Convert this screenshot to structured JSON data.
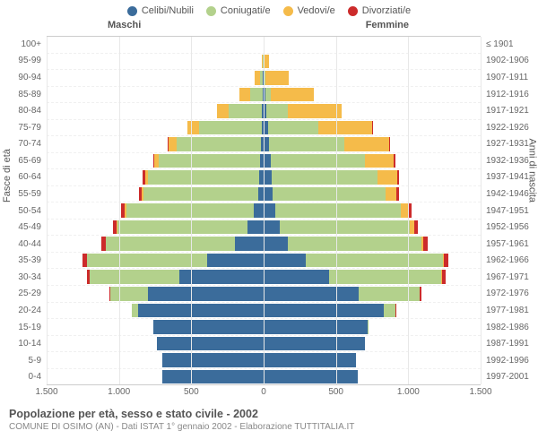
{
  "legend": [
    {
      "label": "Celibi/Nubili",
      "color": "#3b6c9b"
    },
    {
      "label": "Coniugati/e",
      "color": "#b3d18c"
    },
    {
      "label": "Vedovi/e",
      "color": "#f5bb4a"
    },
    {
      "label": "Divorziati/e",
      "color": "#cc2b2b"
    }
  ],
  "headers": {
    "male": "Maschi",
    "female": "Femmine"
  },
  "axis_labels": {
    "left": "Fasce di età",
    "right": "Anni di nascita"
  },
  "x_axis": {
    "max": 1500,
    "ticks": [
      1500,
      1000,
      500,
      0,
      500,
      1000,
      1500
    ]
  },
  "colors": {
    "single": "#3b6c9b",
    "married": "#b3d18c",
    "widowed": "#f5bb4a",
    "divorced": "#cc2b2b",
    "grid": "#e8e8e8",
    "center": "#aaaaaa",
    "bg": "#ffffff"
  },
  "bar_fontsize": 10,
  "rows": [
    {
      "age": "100+",
      "birth": "≤ 1901",
      "m": [
        0,
        0,
        3,
        0
      ],
      "f": [
        0,
        0,
        5,
        0
      ]
    },
    {
      "age": "95-99",
      "birth": "1902-1906",
      "m": [
        2,
        2,
        10,
        0
      ],
      "f": [
        2,
        3,
        35,
        0
      ]
    },
    {
      "age": "90-94",
      "birth": "1907-1911",
      "m": [
        5,
        20,
        40,
        0
      ],
      "f": [
        5,
        10,
        160,
        0
      ]
    },
    {
      "age": "85-89",
      "birth": "1912-1916",
      "m": [
        5,
        90,
        70,
        0
      ],
      "f": [
        10,
        40,
        300,
        0
      ]
    },
    {
      "age": "80-84",
      "birth": "1917-1921",
      "m": [
        10,
        230,
        80,
        0
      ],
      "f": [
        20,
        150,
        370,
        0
      ]
    },
    {
      "age": "75-79",
      "birth": "1922-1926",
      "m": [
        15,
        430,
        80,
        5
      ],
      "f": [
        30,
        350,
        370,
        5
      ]
    },
    {
      "age": "70-74",
      "birth": "1927-1931",
      "m": [
        20,
        580,
        60,
        5
      ],
      "f": [
        40,
        520,
        310,
        5
      ]
    },
    {
      "age": "65-69",
      "birth": "1932-1936",
      "m": [
        25,
        700,
        30,
        10
      ],
      "f": [
        50,
        650,
        200,
        10
      ]
    },
    {
      "age": "60-64",
      "birth": "1937-1941",
      "m": [
        30,
        770,
        20,
        15
      ],
      "f": [
        55,
        730,
        140,
        12
      ]
    },
    {
      "age": "55-59",
      "birth": "1942-1946",
      "m": [
        40,
        790,
        15,
        18
      ],
      "f": [
        60,
        780,
        80,
        15
      ]
    },
    {
      "age": "50-54",
      "birth": "1947-1951",
      "m": [
        70,
        880,
        10,
        25
      ],
      "f": [
        80,
        870,
        50,
        20
      ]
    },
    {
      "age": "45-49",
      "birth": "1952-1956",
      "m": [
        110,
        900,
        5,
        25
      ],
      "f": [
        110,
        900,
        30,
        25
      ]
    },
    {
      "age": "40-44",
      "birth": "1957-1961",
      "m": [
        200,
        890,
        3,
        28
      ],
      "f": [
        170,
        920,
        15,
        28
      ]
    },
    {
      "age": "35-39",
      "birth": "1962-1966",
      "m": [
        390,
        830,
        2,
        28
      ],
      "f": [
        290,
        950,
        8,
        30
      ]
    },
    {
      "age": "30-34",
      "birth": "1967-1971",
      "m": [
        580,
        620,
        0,
        20
      ],
      "f": [
        450,
        780,
        5,
        22
      ]
    },
    {
      "age": "25-29",
      "birth": "1972-1976",
      "m": [
        800,
        260,
        0,
        8
      ],
      "f": [
        660,
        420,
        0,
        10
      ]
    },
    {
      "age": "20-24",
      "birth": "1977-1981",
      "m": [
        870,
        40,
        0,
        0
      ],
      "f": [
        830,
        80,
        0,
        2
      ]
    },
    {
      "age": "15-19",
      "birth": "1982-1986",
      "m": [
        760,
        0,
        0,
        0
      ],
      "f": [
        720,
        2,
        0,
        0
      ]
    },
    {
      "age": "10-14",
      "birth": "1987-1991",
      "m": [
        740,
        0,
        0,
        0
      ],
      "f": [
        700,
        0,
        0,
        0
      ]
    },
    {
      "age": "5-9",
      "birth": "1992-1996",
      "m": [
        700,
        0,
        0,
        0
      ],
      "f": [
        640,
        0,
        0,
        0
      ]
    },
    {
      "age": "0-4",
      "birth": "1997-2001",
      "m": [
        700,
        0,
        0,
        0
      ],
      "f": [
        650,
        0,
        0,
        0
      ]
    }
  ],
  "footer": {
    "title": "Popolazione per età, sesso e stato civile - 2002",
    "sub": "COMUNE DI OSIMO (AN) - Dati ISTAT 1° gennaio 2002 - Elaborazione TUTTITALIA.IT"
  }
}
